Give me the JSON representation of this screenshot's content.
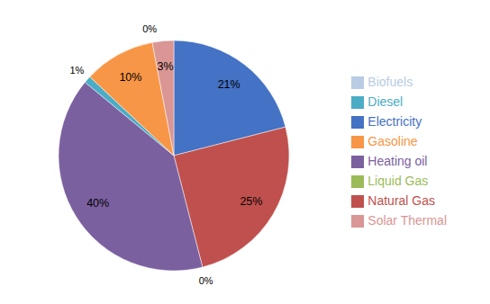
{
  "chart_data": {
    "type": "pie",
    "categories": [
      "Electricity",
      "Natural Gas",
      "Liquid Gas",
      "Heating oil",
      "Diesel",
      "Gasoline",
      "Biofuels",
      "Solar Thermal"
    ],
    "values": [
      21,
      25,
      0,
      40,
      1,
      10,
      0,
      3
    ],
    "value_labels": [
      "21%",
      "25%",
      "0%",
      "40%",
      "1%",
      "10%",
      "0%",
      "3%"
    ],
    "colors": [
      "#4472C4",
      "#C0504D",
      "#9BBB59",
      "#7B60A0",
      "#4BACC6",
      "#F79646",
      "#B8CCE4",
      "#D99694"
    ],
    "data_labels": true,
    "legend": "right"
  }
}
